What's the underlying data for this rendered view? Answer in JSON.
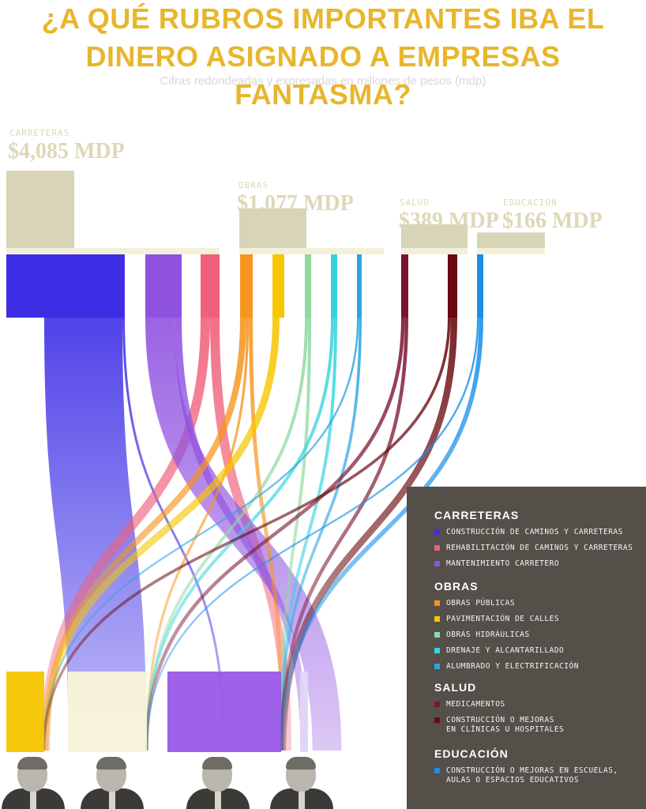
{
  "title": {
    "line1": "¿A QUÉ RUBROS IMPORTANTES IBA EL",
    "line2": "DINERO ASIGNADO A EMPRESAS FANTASMA?"
  },
  "subtitle": "Cifras redondeadas y expresadas en millones de pesos (mdp)",
  "colors": {
    "title": "#e8b62c",
    "block": "#d8d4b8",
    "legend_bg": "#545049"
  },
  "chart_data": {
    "type": "sankey",
    "title": "¿A QUÉ RUBROS IMPORTANTES IBA EL DINERO ASIGNADO A EMPRESAS FANTASMA?",
    "unit": "mdp",
    "categories": [
      {
        "name": "CARRETERAS",
        "value_label": "$4,085 MDP",
        "value": 4085
      },
      {
        "name": "OBRAS",
        "value_label": "$1,077 MDP",
        "value": 1077
      },
      {
        "name": "SALUD",
        "value_label": "$389 MDP",
        "value": 389
      },
      {
        "name": "EDUCACIÓN",
        "value_label": "$166 MDP",
        "value": 166
      }
    ],
    "subcategories": [
      {
        "group": "CARRETERAS",
        "name": "CONSTRUCCIÓN DE CAMINOS Y CARRETERAS",
        "color": "#3d2ee6"
      },
      {
        "group": "CARRETERAS",
        "name": "REHABILITACIÓN DE CAMINOS Y CARRETERAS",
        "color": "#f0607a"
      },
      {
        "group": "CARRETERAS",
        "name": "MANTENIMIENTO CARRETERO",
        "color": "#8f52e0"
      },
      {
        "group": "OBRAS",
        "name": "OBRAS PÚBLICAS",
        "color": "#f7941d"
      },
      {
        "group": "OBRAS",
        "name": "PAVIMENTACIÓN DE CALLES",
        "color": "#f7c600"
      },
      {
        "group": "OBRAS",
        "name": "OBRAS HIDRÁULICAS",
        "color": "#8ed9a0"
      },
      {
        "group": "OBRAS",
        "name": "DRENAJE Y ALCANTARILLADO",
        "color": "#36d3de"
      },
      {
        "group": "OBRAS",
        "name": "ALUMBRADO Y ELECTRIFICACIÓN",
        "color": "#2aa6e0"
      },
      {
        "group": "SALUD",
        "name": "MEDICAMENTOS",
        "color": "#7a1530"
      },
      {
        "group": "SALUD",
        "name": "CONSTRUCCIÓN O MEJORAS\nEN CLÍNICAS U HOSPITALES",
        "color": "#6a0a10"
      },
      {
        "group": "EDUCACIÓN",
        "name": "CONSTRUCCIÓN O MEJORAS EN ESCUELAS,\nAULAS O ESPACIOS EDUCATIVOS",
        "color": "#1a8fe8"
      }
    ]
  },
  "legend": {
    "groups": [
      {
        "title": "CARRETERAS",
        "items": [
          {
            "label": "CONSTRUCCIÓN DE CAMINOS Y CARRETERAS",
            "color": "#3d2ee6"
          },
          {
            "label": "REHABILITACIÓN DE CAMINOS Y CARRETERAS",
            "color": "#f0607a"
          },
          {
            "label": "MANTENIMIENTO CARRETERO",
            "color": "#8f52e0"
          }
        ]
      },
      {
        "title": "OBRAS",
        "items": [
          {
            "label": "OBRAS PÚBLICAS",
            "color": "#f7941d"
          },
          {
            "label": "PAVIMENTACIÓN DE CALLES",
            "color": "#f7c600"
          },
          {
            "label": "OBRAS HIDRÁULICAS",
            "color": "#8ed9a0"
          },
          {
            "label": "DRENAJE Y ALCANTARILLADO",
            "color": "#36d3de"
          },
          {
            "label": "ALUMBRADO Y ELECTRIFICACIÓN",
            "color": "#2aa6e0"
          }
        ]
      },
      {
        "title": "SALUD",
        "items": [
          {
            "label": "MEDICAMENTOS",
            "color": "#7a1530"
          },
          {
            "label": "CONSTRUCCIÓN O MEJORAS\nEN CLÍNICAS U HOSPITALES",
            "color": "#6a0a10"
          }
        ]
      },
      {
        "title": "EDUCACIÓN",
        "items": [
          {
            "label": "CONSTRUCCIÓN O MEJORAS EN ESCUELAS,\nAULAS O ESPACIOS EDUCATIVOS",
            "color": "#1a8fe8"
          }
        ]
      }
    ]
  },
  "portraits": [
    {
      "icon": "portrait-1-icon"
    },
    {
      "icon": "portrait-2-icon"
    },
    {
      "icon": "portrait-3-icon"
    },
    {
      "icon": "portrait-4-icon"
    }
  ]
}
